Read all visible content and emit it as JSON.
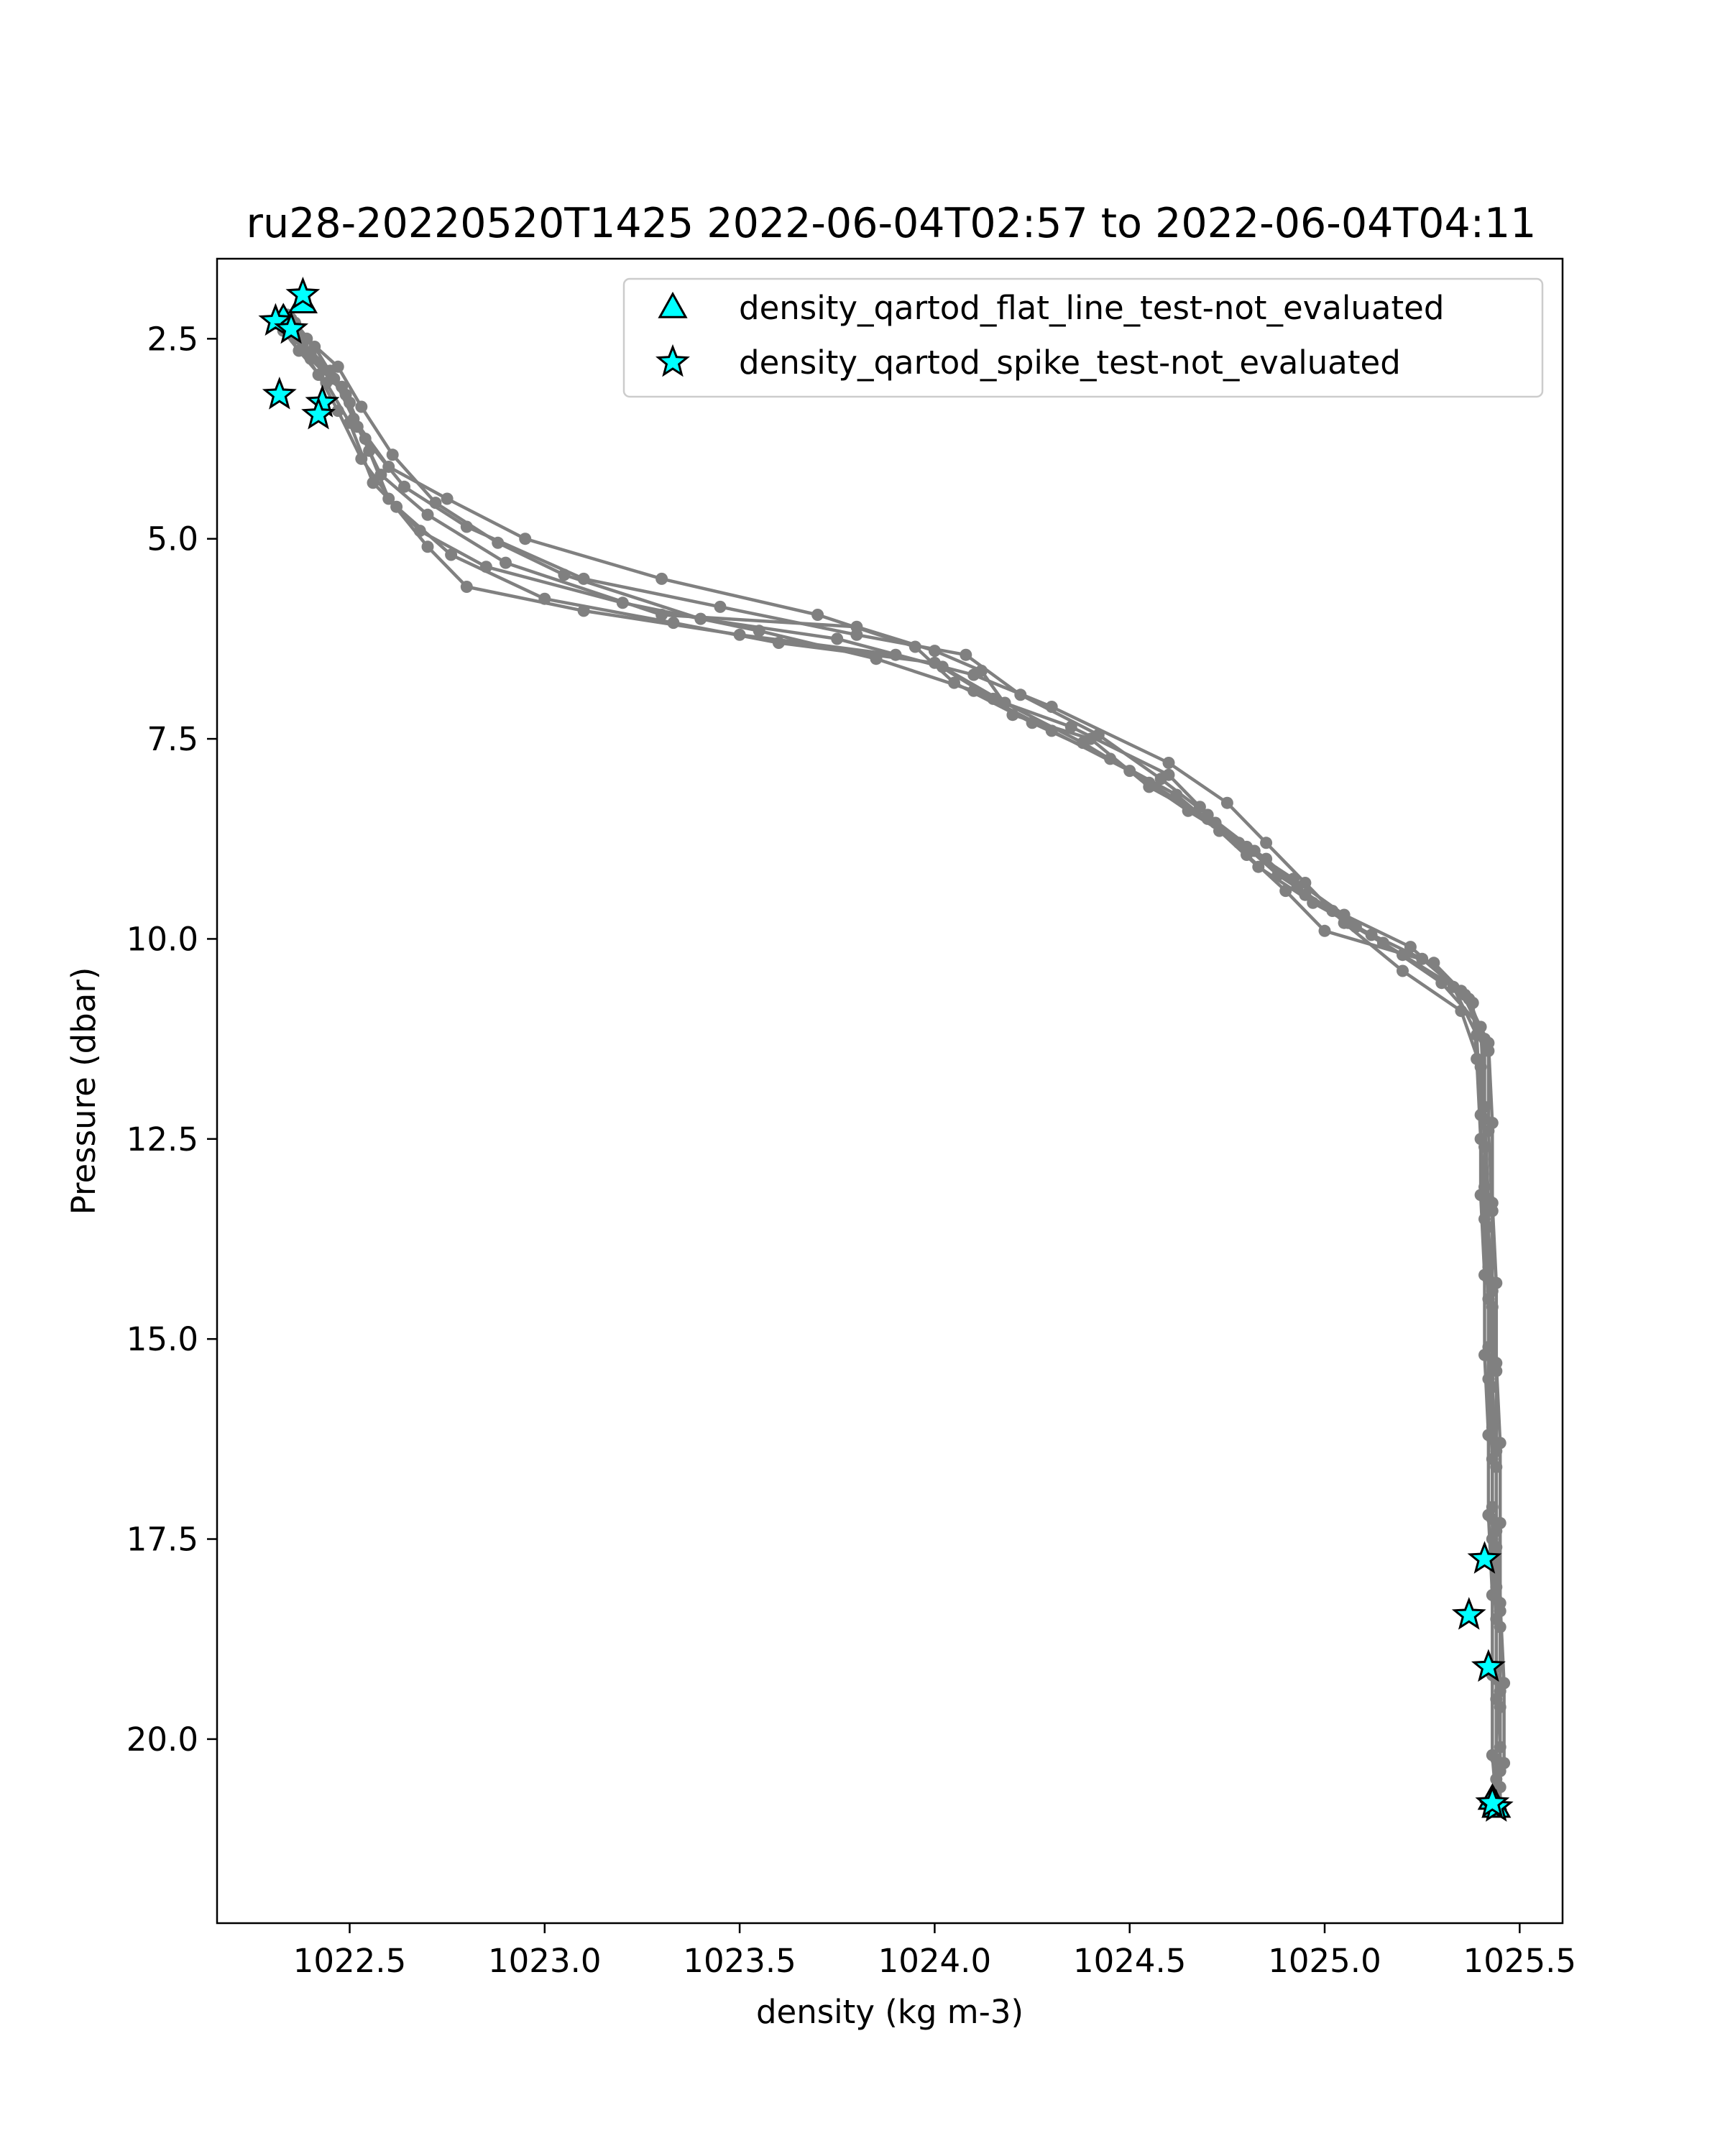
{
  "chart_data": {
    "type": "scatter",
    "title": "ru28-20220520T1425 2022-06-04T02:57 to 2022-06-04T04:11",
    "xlabel": "density (kg m-3)",
    "ylabel": "Pressure (dbar)",
    "xlim": [
      1022.16,
      1025.61
    ],
    "ylim": [
      1.5,
      22.3
    ],
    "y_inverted": true,
    "xticks": [
      {
        "value": 1022.5,
        "label": "1022.5"
      },
      {
        "value": 1023.0,
        "label": "1023.0"
      },
      {
        "value": 1023.5,
        "label": "1023.5"
      },
      {
        "value": 1024.0,
        "label": "1024.0"
      },
      {
        "value": 1024.5,
        "label": "1024.5"
      },
      {
        "value": 1025.0,
        "label": "1025.0"
      },
      {
        "value": 1025.5,
        "label": "1025.5"
      }
    ],
    "yticks": [
      {
        "value": 2.5,
        "label": "2.5"
      },
      {
        "value": 5.0,
        "label": "5.0"
      },
      {
        "value": 7.5,
        "label": "7.5"
      },
      {
        "value": 10.0,
        "label": "10.0"
      },
      {
        "value": 12.5,
        "label": "12.5"
      },
      {
        "value": 15.0,
        "label": "15.0"
      },
      {
        "value": 17.5,
        "label": "17.5"
      },
      {
        "value": 20.0,
        "label": "20.0"
      }
    ],
    "grid": false,
    "legend_position": "top-right",
    "profile_color": "#808080",
    "flag_color": "#00ffff",
    "profiles": [
      [
        [
          1022.35,
          2.35
        ],
        [
          1022.38,
          2.55
        ],
        [
          1022.45,
          2.9
        ],
        [
          1022.5,
          3.3
        ],
        [
          1022.55,
          3.9
        ],
        [
          1022.6,
          4.5
        ],
        [
          1022.7,
          5.1
        ],
        [
          1022.8,
          5.6
        ],
        [
          1023.1,
          5.9
        ],
        [
          1023.5,
          6.2
        ],
        [
          1023.9,
          6.45
        ],
        [
          1024.1,
          6.7
        ],
        [
          1024.3,
          7.1
        ],
        [
          1024.6,
          7.8
        ],
        [
          1024.75,
          8.3
        ],
        [
          1024.85,
          8.8
        ],
        [
          1024.95,
          9.3
        ],
        [
          1025.05,
          9.8
        ],
        [
          1025.2,
          10.4
        ],
        [
          1025.35,
          10.9
        ],
        [
          1025.4,
          11.6
        ],
        [
          1025.41,
          12.6
        ],
        [
          1025.42,
          13.6
        ],
        [
          1025.43,
          14.6
        ],
        [
          1025.43,
          15.6
        ],
        [
          1025.44,
          16.6
        ],
        [
          1025.44,
          17.6
        ],
        [
          1025.45,
          18.6
        ],
        [
          1025.45,
          19.6
        ],
        [
          1025.45,
          20.6
        ]
      ],
      [
        [
          1022.37,
          2.45
        ],
        [
          1022.4,
          2.7
        ],
        [
          1022.48,
          3.1
        ],
        [
          1022.52,
          3.6
        ],
        [
          1022.58,
          4.2
        ],
        [
          1022.7,
          4.7
        ],
        [
          1022.9,
          5.3
        ],
        [
          1023.3,
          5.95
        ],
        [
          1023.8,
          6.1
        ],
        [
          1024.0,
          6.4
        ],
        [
          1024.12,
          6.65
        ],
        [
          1024.2,
          7.2
        ],
        [
          1024.4,
          7.5
        ],
        [
          1024.55,
          8.1
        ],
        [
          1024.7,
          8.5
        ],
        [
          1024.8,
          8.95
        ],
        [
          1024.9,
          9.4
        ],
        [
          1025.0,
          9.9
        ],
        [
          1025.28,
          10.3
        ],
        [
          1025.38,
          10.8
        ],
        [
          1025.39,
          11.5
        ],
        [
          1025.4,
          12.5
        ],
        [
          1025.41,
          13.5
        ],
        [
          1025.42,
          14.5
        ],
        [
          1025.42,
          15.5
        ],
        [
          1025.43,
          16.5
        ],
        [
          1025.43,
          17.5
        ],
        [
          1025.44,
          18.5
        ],
        [
          1025.44,
          19.5
        ],
        [
          1025.44,
          20.5
        ]
      ],
      [
        [
          1022.34,
          2.2
        ],
        [
          1022.36,
          2.5
        ],
        [
          1022.42,
          2.95
        ],
        [
          1022.47,
          3.4
        ],
        [
          1022.53,
          4.0
        ],
        [
          1022.62,
          4.6
        ],
        [
          1022.76,
          5.2
        ],
        [
          1023.0,
          5.75
        ],
        [
          1023.33,
          6.05
        ],
        [
          1023.6,
          6.3
        ],
        [
          1024.0,
          6.55
        ],
        [
          1024.15,
          7.0
        ],
        [
          1024.35,
          7.35
        ],
        [
          1024.6,
          7.95
        ],
        [
          1024.68,
          8.35
        ],
        [
          1024.78,
          8.8
        ],
        [
          1024.92,
          9.25
        ],
        [
          1025.05,
          9.7
        ],
        [
          1025.22,
          10.1
        ],
        [
          1025.36,
          10.7
        ],
        [
          1025.42,
          11.3
        ],
        [
          1025.43,
          12.3
        ],
        [
          1025.43,
          13.3
        ],
        [
          1025.44,
          14.3
        ],
        [
          1025.44,
          15.3
        ],
        [
          1025.45,
          16.3
        ],
        [
          1025.45,
          17.3
        ],
        [
          1025.45,
          18.3
        ],
        [
          1025.46,
          19.3
        ],
        [
          1025.46,
          20.3
        ]
      ],
      [
        [
          1022.36,
          2.3
        ],
        [
          1022.41,
          2.6
        ],
        [
          1022.46,
          3.0
        ],
        [
          1022.51,
          3.5
        ],
        [
          1022.6,
          4.1
        ],
        [
          1022.75,
          4.5
        ],
        [
          1022.95,
          5.0
        ],
        [
          1023.3,
          5.5
        ],
        [
          1023.7,
          5.95
        ],
        [
          1023.95,
          6.35
        ],
        [
          1024.05,
          6.8
        ],
        [
          1024.25,
          7.3
        ],
        [
          1024.45,
          7.75
        ],
        [
          1024.62,
          8.2
        ],
        [
          1024.73,
          8.65
        ],
        [
          1024.83,
          9.1
        ],
        [
          1024.97,
          9.55
        ],
        [
          1025.12,
          9.95
        ],
        [
          1025.3,
          10.55
        ],
        [
          1025.4,
          11.1
        ],
        [
          1025.41,
          12.1
        ],
        [
          1025.41,
          13.1
        ],
        [
          1025.42,
          14.1
        ],
        [
          1025.42,
          15.1
        ],
        [
          1025.43,
          16.1
        ],
        [
          1025.43,
          17.1
        ],
        [
          1025.44,
          18.1
        ],
        [
          1025.44,
          19.1
        ],
        [
          1025.45,
          20.1
        ],
        [
          1025.45,
          20.9
        ]
      ],
      [
        [
          1022.33,
          2.4
        ],
        [
          1022.37,
          2.65
        ],
        [
          1022.44,
          3.05
        ],
        [
          1022.5,
          3.55
        ],
        [
          1022.56,
          4.3
        ],
        [
          1022.68,
          4.9
        ],
        [
          1022.85,
          5.35
        ],
        [
          1023.2,
          5.8
        ],
        [
          1023.55,
          6.15
        ],
        [
          1023.85,
          6.5
        ],
        [
          1024.1,
          6.9
        ],
        [
          1024.3,
          7.4
        ],
        [
          1024.5,
          7.9
        ],
        [
          1024.65,
          8.4
        ],
        [
          1024.8,
          8.85
        ],
        [
          1024.88,
          9.2
        ],
        [
          1025.02,
          9.65
        ],
        [
          1025.15,
          10.05
        ],
        [
          1025.33,
          10.6
        ],
        [
          1025.39,
          11.2
        ],
        [
          1025.4,
          12.2
        ],
        [
          1025.4,
          13.2
        ],
        [
          1025.41,
          14.2
        ],
        [
          1025.41,
          15.2
        ],
        [
          1025.42,
          16.2
        ],
        [
          1025.42,
          17.2
        ],
        [
          1025.43,
          18.2
        ],
        [
          1025.43,
          19.2
        ],
        [
          1025.43,
          20.2
        ],
        [
          1025.44,
          20.8
        ]
      ],
      [
        [
          1022.35,
          2.25
        ],
        [
          1022.39,
          2.5
        ],
        [
          1022.47,
          2.85
        ],
        [
          1022.53,
          3.35
        ],
        [
          1022.61,
          3.95
        ],
        [
          1022.72,
          4.55
        ],
        [
          1022.88,
          5.05
        ],
        [
          1023.05,
          5.45
        ],
        [
          1023.4,
          6.0
        ],
        [
          1023.75,
          6.25
        ],
        [
          1024.02,
          6.6
        ],
        [
          1024.18,
          7.05
        ],
        [
          1024.38,
          7.55
        ],
        [
          1024.55,
          8.05
        ],
        [
          1024.72,
          8.55
        ],
        [
          1024.85,
          9.0
        ],
        [
          1024.95,
          9.45
        ],
        [
          1025.08,
          9.85
        ],
        [
          1025.25,
          10.25
        ],
        [
          1025.37,
          10.75
        ],
        [
          1025.42,
          11.4
        ],
        [
          1025.42,
          12.4
        ],
        [
          1025.43,
          13.4
        ],
        [
          1025.43,
          14.4
        ],
        [
          1025.44,
          15.4
        ],
        [
          1025.44,
          16.4
        ],
        [
          1025.44,
          17.4
        ],
        [
          1025.45,
          18.4
        ],
        [
          1025.45,
          19.4
        ],
        [
          1025.45,
          20.4
        ]
      ],
      [
        [
          1022.36,
          2.4
        ],
        [
          1022.4,
          2.75
        ],
        [
          1022.49,
          3.2
        ],
        [
          1022.54,
          3.75
        ],
        [
          1022.64,
          4.35
        ],
        [
          1022.8,
          4.85
        ],
        [
          1023.1,
          5.5
        ],
        [
          1023.45,
          5.85
        ],
        [
          1023.8,
          6.2
        ],
        [
          1024.08,
          6.45
        ],
        [
          1024.22,
          6.95
        ],
        [
          1024.42,
          7.45
        ],
        [
          1024.58,
          8.0
        ],
        [
          1024.7,
          8.45
        ],
        [
          1024.82,
          8.9
        ],
        [
          1024.93,
          9.35
        ],
        [
          1025.06,
          9.8
        ],
        [
          1025.2,
          10.2
        ],
        [
          1025.35,
          10.65
        ],
        [
          1025.41,
          11.25
        ],
        [
          1025.41,
          12.25
        ],
        [
          1025.42,
          13.25
        ],
        [
          1025.42,
          14.25
        ],
        [
          1025.43,
          15.25
        ],
        [
          1025.43,
          16.25
        ],
        [
          1025.43,
          17.25
        ],
        [
          1025.44,
          18.25
        ],
        [
          1025.44,
          19.25
        ],
        [
          1025.44,
          20.25
        ],
        [
          1025.45,
          20.85
        ]
      ]
    ],
    "series": [
      {
        "name": "density_qartod_flat_line_test-not_evaluated",
        "marker": "triangle",
        "points": [
          [
            1022.33,
            2.25
          ],
          [
            1022.38,
            2.05
          ],
          [
            1025.44,
            20.85
          ],
          [
            1025.43,
            20.75
          ]
        ]
      },
      {
        "name": "density_qartod_spike_test-not_evaluated",
        "marker": "star",
        "points": [
          [
            1022.31,
            2.28
          ],
          [
            1022.35,
            2.38
          ],
          [
            1022.38,
            1.95
          ],
          [
            1022.32,
            3.2
          ],
          [
            1022.43,
            3.3
          ],
          [
            1022.42,
            3.45
          ],
          [
            1025.41,
            17.75
          ],
          [
            1025.37,
            18.45
          ],
          [
            1025.42,
            19.1
          ],
          [
            1025.44,
            20.85
          ],
          [
            1025.43,
            20.8
          ]
        ]
      }
    ]
  }
}
